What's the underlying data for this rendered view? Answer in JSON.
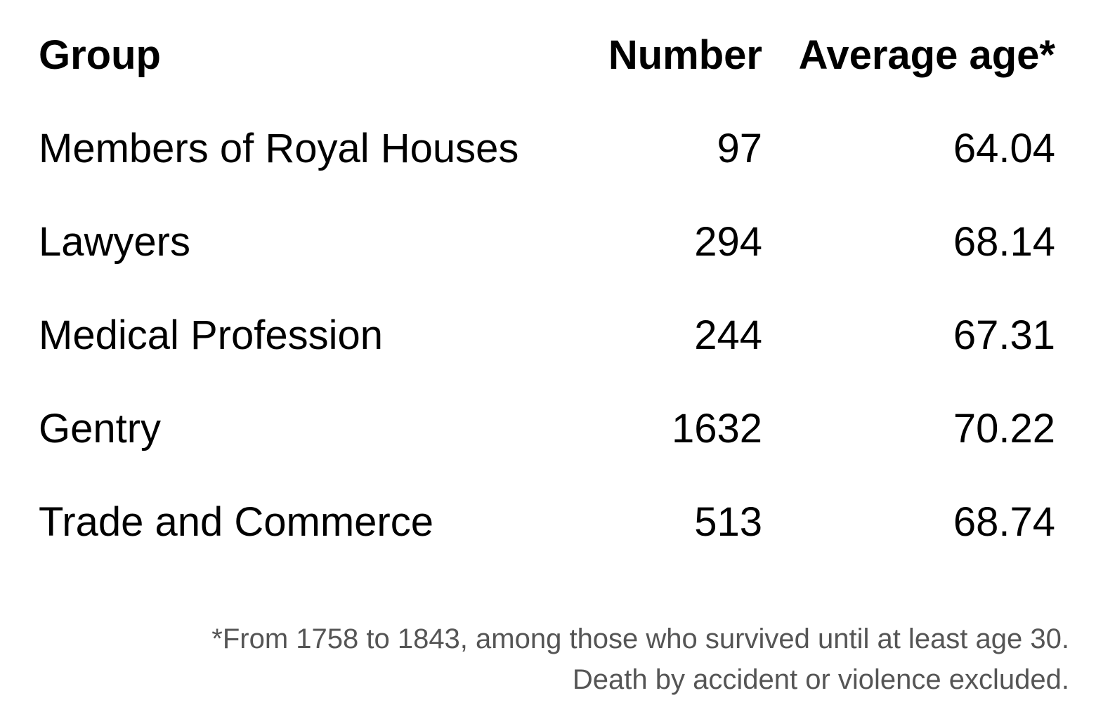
{
  "table": {
    "headers": [
      "Group",
      "Number",
      "Average age*"
    ],
    "rows": [
      [
        "Members of Royal Houses",
        97,
        64.04
      ],
      [
        "Lawyers",
        294,
        68.14
      ],
      [
        "Medical Profession",
        244,
        67.31
      ],
      [
        "Gentry",
        1632,
        70.22
      ],
      [
        "Trade and Commerce",
        513,
        68.74
      ]
    ]
  },
  "footnote": {
    "lines": [
      "*From 1758 to 1843, among those who survived until at least age 30.",
      "Death by accident or violence excluded."
    ]
  }
}
